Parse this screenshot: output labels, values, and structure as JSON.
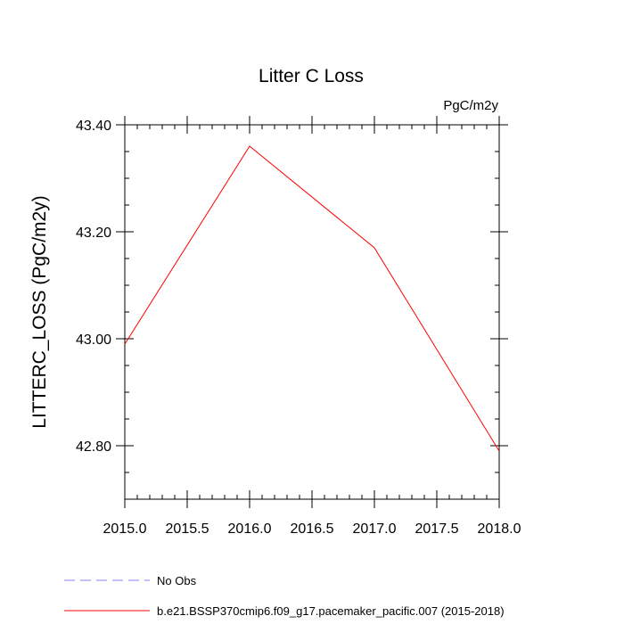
{
  "chart_data": {
    "type": "line",
    "title": "Litter C Loss",
    "units": "PgC/m2y",
    "xlabel": "",
    "ylabel": "LITTERC_LOSS  (PgC/m2y)",
    "xlim": [
      2015.0,
      2018.0
    ],
    "ylim": [
      42.7,
      43.4
    ],
    "x_ticks": [
      2015.0,
      2015.5,
      2016.0,
      2016.5,
      2017.0,
      2017.5,
      2018.0
    ],
    "x_tick_labels": [
      "2015.0",
      "2015.5",
      "2016.0",
      "2016.5",
      "2017.0",
      "2017.5",
      "2018.0"
    ],
    "y_ticks": [
      42.8,
      43.0,
      43.2,
      43.4
    ],
    "y_tick_labels": [
      "42.80",
      "43.00",
      "43.20",
      "43.40"
    ],
    "y_minor_step": 0.05,
    "x_minor_step": 0.1,
    "grid": false,
    "legend_position": "bottom",
    "series": [
      {
        "name": "No Obs",
        "color": "#8080ff",
        "dash": "dashed",
        "x": [],
        "y": []
      },
      {
        "name": "b.e21.BSSP370cmip6.f09_g17.pacemaker_pacific.007 (2015-2018)",
        "color": "#ff0000",
        "dash": "solid",
        "x": [
          2015.0,
          2016.0,
          2017.0,
          2018.0
        ],
        "y": [
          42.99,
          43.36,
          43.17,
          42.79
        ]
      }
    ]
  }
}
